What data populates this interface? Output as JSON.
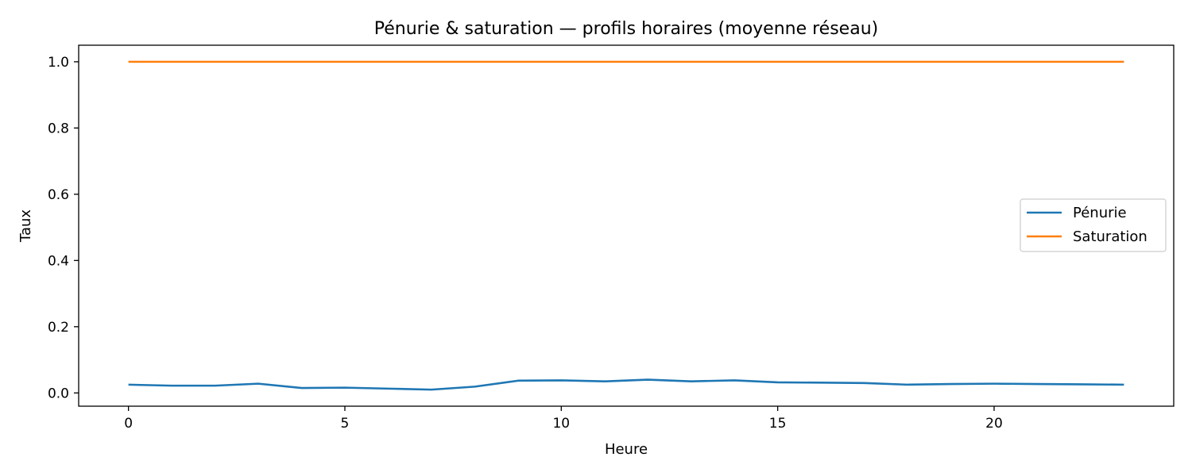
{
  "chart_data": {
    "type": "line",
    "title": "Pénurie & saturation — profils horaires (moyenne réseau)",
    "xlabel": "Heure",
    "ylabel": "Taux",
    "xlim": [
      -1.15,
      24.15
    ],
    "ylim": [
      -0.04,
      1.05
    ],
    "x_ticks": [
      0,
      5,
      10,
      15,
      20
    ],
    "y_ticks": [
      0.0,
      0.2,
      0.4,
      0.6,
      0.8,
      1.0
    ],
    "y_tick_labels": [
      "0.0",
      "0.2",
      "0.4",
      "0.6",
      "0.8",
      "1.0"
    ],
    "grid": false,
    "legend_position": "center-right",
    "x": [
      0,
      1,
      2,
      3,
      4,
      5,
      6,
      7,
      8,
      9,
      10,
      11,
      12,
      13,
      14,
      15,
      16,
      17,
      18,
      19,
      20,
      21,
      22,
      23
    ],
    "series": [
      {
        "name": "Pénurie",
        "color": "#1f77b4",
        "values": [
          0.025,
          0.022,
          0.022,
          0.028,
          0.015,
          0.016,
          0.013,
          0.01,
          0.019,
          0.037,
          0.038,
          0.035,
          0.04,
          0.035,
          0.038,
          0.032,
          0.031,
          0.03,
          0.025,
          0.027,
          0.028,
          0.027,
          0.026,
          0.025
        ]
      },
      {
        "name": "Saturation",
        "color": "#ff7f0e",
        "values": [
          1.0,
          1.0,
          1.0,
          1.0,
          1.0,
          1.0,
          1.0,
          1.0,
          1.0,
          1.0,
          1.0,
          1.0,
          1.0,
          1.0,
          1.0,
          1.0,
          1.0,
          1.0,
          1.0,
          1.0,
          1.0,
          1.0,
          1.0,
          1.0
        ]
      }
    ]
  }
}
